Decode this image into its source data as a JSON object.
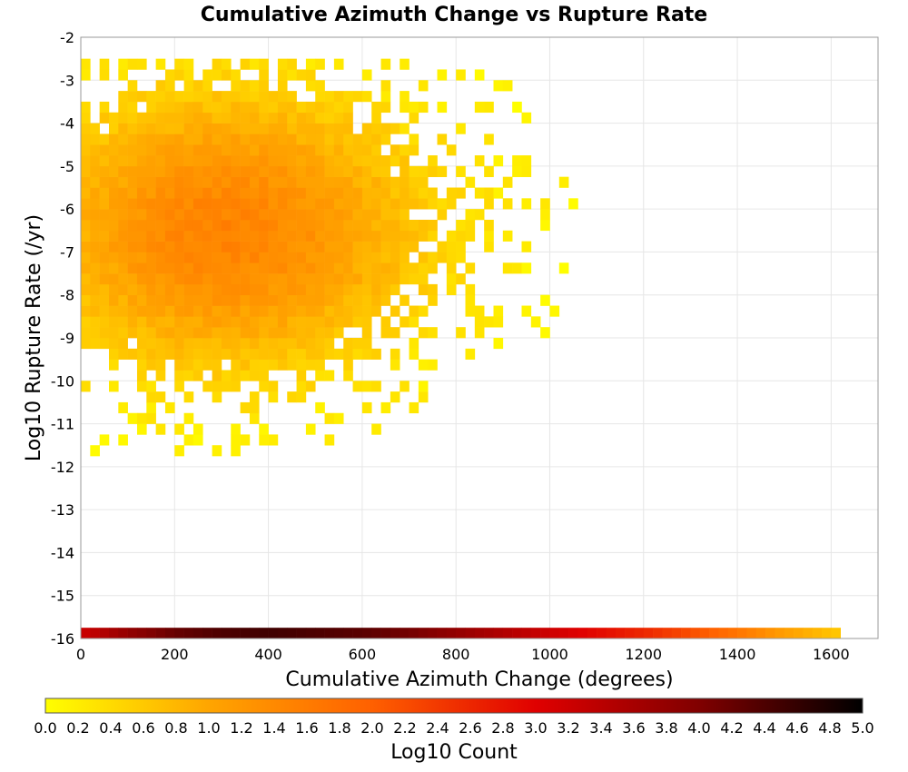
{
  "chart_data": {
    "type": "heatmap",
    "title": "Cumulative Azimuth Change vs Rupture Rate",
    "xlabel": "Cumulative Azimuth Change (degrees)",
    "ylabel": "Log10 Rupture Rate (/yr)",
    "xlim": [
      0,
      1700
    ],
    "ylim": [
      -16,
      -2
    ],
    "x_ticks": [
      "0",
      "200",
      "400",
      "600",
      "800",
      "1000",
      "1200",
      "1400",
      "1600"
    ],
    "y_ticks": [
      "-2",
      "-3",
      "-4",
      "-5",
      "-6",
      "-7",
      "-8",
      "-9",
      "-10",
      "-11",
      "-12",
      "-13",
      "-14",
      "-15",
      "-16"
    ],
    "bin_width_x": 20,
    "bin_height_y": 0.25,
    "grid": true,
    "colorbar": {
      "label": "Log10 Count",
      "range": [
        0.0,
        5.0
      ],
      "ticks": [
        "0.0",
        "0.2",
        "0.4",
        "0.6",
        "0.8",
        "1.0",
        "1.2",
        "1.4",
        "1.6",
        "1.8",
        "2.0",
        "2.2",
        "2.4",
        "2.6",
        "2.8",
        "3.0",
        "3.2",
        "3.4",
        "3.6",
        "3.8",
        "4.0",
        "4.2",
        "4.4",
        "4.6",
        "4.8",
        "5.0"
      ],
      "colors": [
        "#ffff00",
        "#ffa500",
        "#ff6000",
        "#e00000",
        "#800000",
        "#000000"
      ]
    },
    "density_model": {
      "center_x": 300,
      "center_y": -6.5,
      "peak_log_count": 1.5,
      "x_extent": [
        0,
        1140
      ],
      "y_extent": [
        -11.75,
        -2.5
      ]
    },
    "bottom_row": {
      "y": -16,
      "x_range": [
        0,
        1620
      ],
      "values": [
        [
          0,
          3.2
        ],
        [
          100,
          3.8
        ],
        [
          200,
          4.2
        ],
        [
          300,
          4.4
        ],
        [
          400,
          4.5
        ],
        [
          500,
          4.4
        ],
        [
          600,
          4.3
        ],
        [
          700,
          4.1
        ],
        [
          800,
          3.8
        ],
        [
          900,
          3.5
        ],
        [
          1000,
          3.2
        ],
        [
          1100,
          2.9
        ],
        [
          1200,
          2.6
        ],
        [
          1300,
          2.2
        ],
        [
          1400,
          1.7
        ],
        [
          1500,
          1.1
        ],
        [
          1620,
          0.6
        ]
      ]
    }
  }
}
